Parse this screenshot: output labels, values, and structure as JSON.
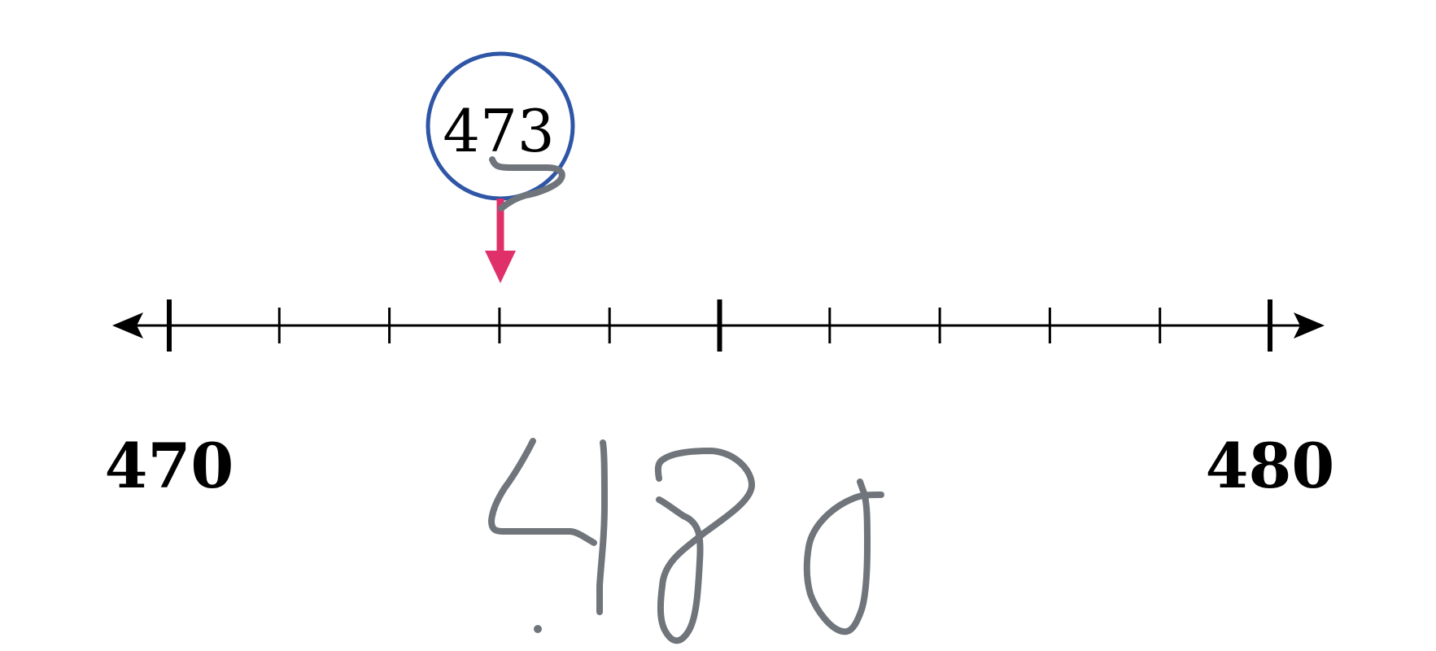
{
  "number_line": {
    "start_label": "470",
    "end_label": "480",
    "range": [
      470,
      480
    ],
    "major_tick_values": [
      470,
      475,
      480
    ],
    "minor_tick_values": [
      471,
      472,
      473,
      474,
      476,
      477,
      478,
      479
    ],
    "arrowheads": "both ends"
  },
  "highlight": {
    "value": 473,
    "label": "473",
    "circle_color": "#2f56a6",
    "arrow_color": "#e0306a",
    "arrow_direction": "down"
  },
  "handwriting": {
    "text": ".480",
    "ink_color": "#6f757b"
  },
  "colors": {
    "axis": "#000000",
    "background": "#ffffff"
  }
}
